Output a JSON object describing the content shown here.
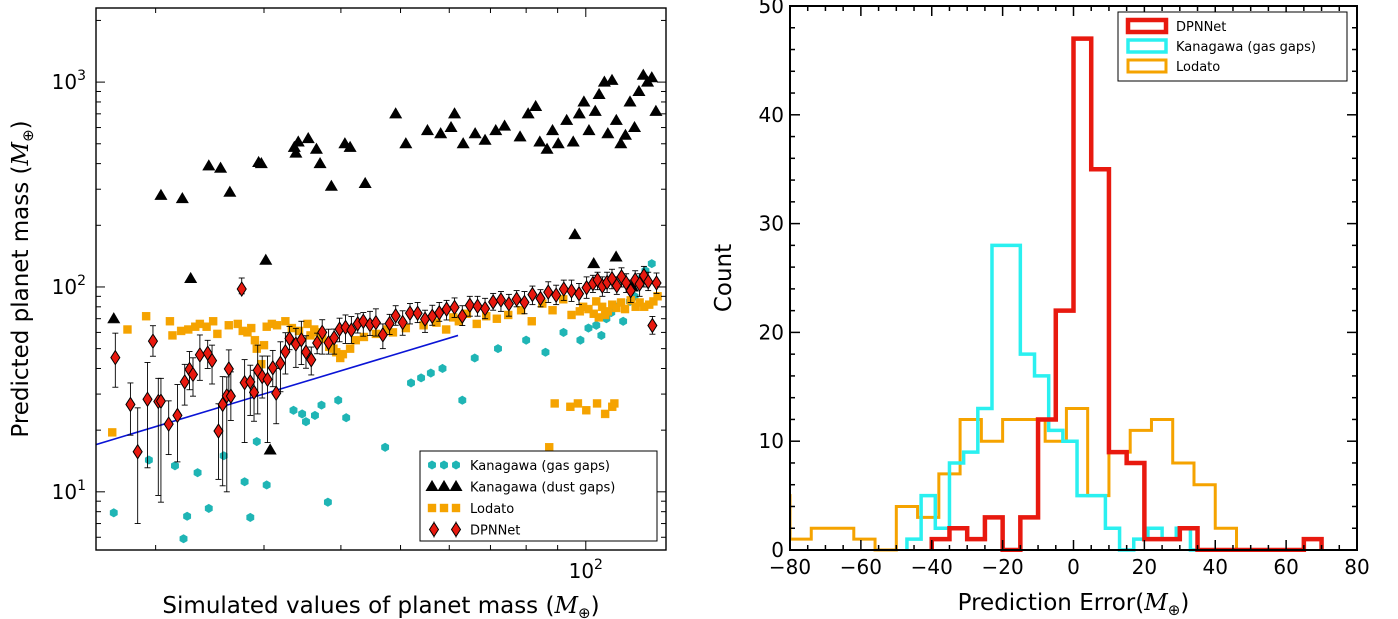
{
  "chart_data": [
    {
      "type": "scatter",
      "xlabel": "Simulated values of planet mass (M⊕)",
      "ylabel": "Predicted planet mass (M⊕)",
      "xscale": "log",
      "yscale": "log",
      "xlim": [
        16,
        135
      ],
      "ylim": [
        5.2,
        2300
      ],
      "x_tick_labels": [
        {
          "value": 100,
          "label": "10²"
        }
      ],
      "y_tick_labels": [
        {
          "value": 10,
          "label": "10¹"
        },
        {
          "value": 100,
          "label": "10²"
        },
        {
          "value": 1000,
          "label": "10³"
        }
      ],
      "legend_position": "bottom-right",
      "colors": {
        "kanagawa_gas": "#1fb5b5",
        "kanagawa_dust": "#000000",
        "lodato": "#f5a300",
        "dpnnet": "#e8190f",
        "fit_line": "#0a14d6"
      },
      "fit_line": {
        "name": "",
        "x": [
          16,
          62
        ],
        "y": [
          17,
          58
        ]
      },
      "series": [
        {
          "name": "Kanagawa (gas gaps)",
          "marker": "hexagon",
          "x": [
            17.1,
            19.5,
            21.5,
            22.2,
            22.5,
            23.4,
            24.4,
            25.8,
            27.9,
            28.5,
            29.2,
            30.3,
            33.5,
            34.6,
            35.1,
            36.3,
            37.2,
            38.1,
            39.6,
            40.8,
            47.2,
            52,
            54,
            56,
            58.5,
            63,
            66,
            72,
            80,
            86,
            92,
            98,
            101,
            104,
            106,
            108,
            110,
            112,
            115,
            118,
            120,
            123,
            125,
            128
          ],
          "y": [
            7.9,
            14.3,
            13.4,
            5.9,
            7.6,
            12.4,
            8.3,
            15,
            11.2,
            7.5,
            17.6,
            10.8,
            25,
            24,
            22,
            23.6,
            26.5,
            8.9,
            28,
            23,
            16.5,
            34,
            36,
            38,
            40,
            28,
            45,
            50,
            55,
            48,
            60,
            55,
            63,
            65,
            58,
            70,
            75,
            80,
            68,
            85,
            90,
            110,
            120,
            130
          ]
        },
        {
          "name": "Kanagawa (dust gaps)",
          "marker": "triangle",
          "x": [
            17.1,
            20.4,
            22.1,
            22.8,
            24.4,
            25.5,
            26.4,
            29.4,
            29.7,
            30.2,
            30.7,
            33.6,
            33.8,
            34.1,
            35.4,
            36.5,
            37,
            38.6,
            40.6,
            41.4,
            43.8,
            49.1,
            51,
            55.3,
            58.1,
            60.4,
            61.2,
            63.2,
            66.1,
            68.6,
            71.4,
            73.8,
            78.2,
            80.6,
            82.9,
            84.2,
            86.5,
            88.3,
            90.2,
            93.1,
            95.4,
            97.6,
            99.3,
            101.2,
            103.6,
            105.1,
            107.2,
            108.6,
            110.3,
            112.1,
            114,
            116,
            118,
            120,
            122,
            124,
            126,
            128,
            130,
            96,
            103,
            112,
            119
          ],
          "y": [
            70,
            280,
            270,
            110,
            390,
            380,
            290,
            405,
            400,
            135,
            16,
            480,
            450,
            510,
            530,
            470,
            400,
            310,
            500,
            480,
            320,
            700,
            500,
            580,
            560,
            600,
            700,
            500,
            560,
            520,
            580,
            610,
            540,
            700,
            760,
            510,
            470,
            580,
            500,
            650,
            510,
            700,
            800,
            580,
            720,
            870,
            1000,
            560,
            1020,
            650,
            500,
            550,
            800,
            600,
            900,
            1080,
            1000,
            1050,
            720,
            180,
            130,
            140,
            100
          ],
          "open_marker_at": {
            "x": 30.2,
            "y": 16
          }
        },
        {
          "name": "Lodato",
          "marker": "square",
          "x": [
            17,
            18,
            19.3,
            21.1,
            21.3,
            22,
            22.6,
            23.2,
            23.6,
            24.2,
            24.8,
            25.2,
            26.3,
            27.2,
            27.7,
            28.2,
            28.6,
            29,
            29.2,
            29.7,
            30,
            30.3,
            30.9,
            31.5,
            32.5,
            33.3,
            34.2,
            35.3,
            35.7,
            36.2,
            36.8,
            37.3,
            38.3,
            38.9,
            39.3,
            39.9,
            40.3,
            41.4,
            42.3,
            43.6,
            45.6,
            47.6,
            48.6,
            51,
            54.5,
            57.2,
            59.3,
            60.9,
            62.2,
            64.1,
            66.5,
            68.9,
            71.7,
            74.8,
            78.5,
            81.7,
            85,
            88.3,
            91.9,
            94.8,
            97.8,
            99,
            101,
            103,
            104,
            105,
            106.3,
            107.5,
            108.6,
            110.4,
            112.1,
            114.1,
            115.8,
            118.3,
            120.5,
            122.3,
            124.4,
            126.8,
            128.8,
            130.8,
            87.2,
            89,
            94.4,
            97.1,
            100.2,
            104.3,
            107.5,
            110.4,
            111.3
          ],
          "y": [
            19.5,
            62,
            72,
            68,
            58,
            61,
            62,
            64,
            66,
            64,
            68,
            59,
            65,
            66,
            61,
            60,
            63,
            55,
            50,
            42,
            52,
            64,
            66,
            65,
            68,
            63,
            61,
            66,
            58,
            62,
            60,
            56,
            51,
            50,
            48,
            45,
            47,
            50,
            55,
            57,
            59,
            62,
            60,
            63,
            65,
            67,
            62,
            71,
            68,
            74,
            66,
            72,
            70,
            73,
            77,
            68,
            83,
            77,
            87,
            73,
            76,
            80,
            78,
            74,
            85,
            71,
            80,
            73,
            76,
            82,
            79,
            84,
            78,
            86,
            80,
            84,
            80,
            82,
            85,
            90,
            16.5,
            27,
            26,
            27,
            25,
            27,
            24,
            26,
            27
          ]
        },
        {
          "name": "DPNNet",
          "marker": "diamond",
          "x": [
            17.2,
            18.2,
            18.7,
            19.4,
            19.8,
            20.2,
            20.4,
            21,
            21.7,
            22.3,
            22.7,
            23,
            23.6,
            24.3,
            24.7,
            25.3,
            25.7,
            26.1,
            26.3,
            26.5,
            27.6,
            27.9,
            28.5,
            28.9,
            29.3,
            29.8,
            30.4,
            31,
            31.4,
            31.9,
            32.5,
            33,
            33.8,
            34.5,
            35.1,
            35.8,
            36.6,
            37.3,
            38.2,
            39,
            39.8,
            40.7,
            41.6,
            42.6,
            43.5,
            44.6,
            45.6,
            46.8,
            48,
            49.1,
            50.4,
            51.8,
            53.3,
            54.8,
            56.3,
            57.8,
            59.4,
            61.2,
            63,
            64.8,
            66.7,
            68.6,
            70.7,
            72.8,
            75,
            77.2,
            79.5,
            81.9,
            84.4,
            86.9,
            89.5,
            92.1,
            94.8,
            97.5,
            100.3,
            102.7,
            104.5,
            106.4,
            108.3,
            110.3,
            112.3,
            114.3,
            116.3,
            118.3,
            120.3,
            122.3,
            124.3,
            126.3,
            128.3,
            130.3
          ],
          "y": [
            45.2,
            26.7,
            15.7,
            28.3,
            54.4,
            27.6,
            27.7,
            21.4,
            23.6,
            34.4,
            39.6,
            37.4,
            46.6,
            47.5,
            43.7,
            19.8,
            26.7,
            29.4,
            39.8,
            29.3,
            97.7,
            34.1,
            34.4,
            30.6,
            39.2,
            36.5,
            35.4,
            40.3,
            30.3,
            42.4,
            48.3,
            56,
            52.6,
            55.2,
            48.1,
            44.1,
            53.3,
            60,
            53.4,
            56.4,
            62.2,
            63.5,
            61.6,
            66.1,
            68,
            65.5,
            67,
            58.4,
            66.3,
            72.3,
            67.1,
            74.5,
            74.4,
            69.6,
            71.9,
            74.8,
            77.9,
            79.5,
            72,
            81.4,
            80.5,
            78.4,
            84.5,
            86.4,
            82.7,
            87.1,
            84.1,
            91.8,
            87.9,
            94.4,
            91.2,
            97.6,
            95.6,
            92.6,
            99.2,
            103.8,
            108.3,
            100.9,
            105.2,
            109.6,
            101.4,
            112.1,
            104.7,
            95.9,
            108.2,
            103.4,
            113.5,
            106.1,
            64.8,
            104.6
          ],
          "error_low": [
            32.4,
            18.9,
            7,
            13.1,
            45.9,
            9.6,
            8.9,
            15.2,
            14,
            26.5,
            31.5,
            29.3,
            35,
            40,
            33.6,
            11.5,
            10.7,
            10,
            30.7,
            22.3,
            92.6,
            17.4,
            23.6,
            22.1,
            24,
            28.7,
            17.4,
            32.6,
            21.5,
            30.8,
            37.6,
            49.4,
            40.5,
            41.8,
            40.1,
            37.2,
            47.2,
            47,
            47,
            47,
            54,
            53,
            53,
            59.6,
            57.5,
            58,
            57.6,
            50,
            58.6,
            65,
            58.1,
            66,
            67,
            60,
            65,
            68,
            69,
            71,
            64.8,
            72,
            72,
            70,
            77,
            76,
            72,
            80,
            74,
            82,
            80,
            84,
            82,
            86,
            85,
            82,
            88,
            94,
            97,
            90,
            94,
            98,
            92,
            100,
            94,
            84,
            96,
            90,
            100,
            96,
            58.8,
            93
          ],
          "error_high": [
            59.5,
            34,
            25.7,
            42.8,
            64.7,
            35.8,
            35.8,
            27.8,
            33.4,
            41.9,
            48.4,
            45.1,
            58.3,
            54.9,
            52,
            26.9,
            36.5,
            36.4,
            49.3,
            38.5,
            110.6,
            44.2,
            41.5,
            39.2,
            52,
            46,
            46,
            49,
            40,
            54,
            59.8,
            64.2,
            62.8,
            68,
            57.8,
            50.9,
            59.5,
            69.2,
            62.2,
            62.3,
            70.4,
            73,
            71.7,
            74,
            75,
            76,
            78.2,
            66,
            73.5,
            81,
            76.5,
            83,
            84,
            77,
            81.4,
            84,
            86,
            88.4,
            81,
            90,
            90,
            88,
            93,
            95,
            92,
            96,
            95,
            101,
            97,
            106,
            102,
            108,
            108,
            104,
            112,
            114,
            118,
            112,
            118,
            122,
            112,
            124,
            116,
            108,
            120,
            116,
            126,
            118,
            71.8,
            117
          ]
        }
      ]
    },
    {
      "type": "histogram",
      "xlabel": "Prediction Error(M⊕)",
      "ylabel": "Count",
      "xlim": [
        -80,
        80
      ],
      "ylim": [
        0,
        50
      ],
      "x_ticks": [
        -80,
        -60,
        -40,
        -20,
        0,
        20,
        40,
        60,
        80
      ],
      "y_ticks": [
        0,
        10,
        20,
        30,
        40,
        50
      ],
      "legend_position": "top-right",
      "series": [
        {
          "name": "DPNNet",
          "color": "#e8190f",
          "bin_edges": [
            -40,
            -35,
            -30,
            -25,
            -20,
            -15,
            -10,
            -5,
            0,
            5,
            10,
            15,
            20,
            25,
            30,
            35,
            40,
            45,
            50,
            55,
            60,
            65,
            70
          ],
          "counts": [
            1,
            2,
            1,
            3,
            0,
            3,
            12,
            22,
            47,
            35,
            9,
            8,
            1,
            1,
            2,
            0,
            0,
            0,
            0,
            0,
            0,
            1
          ]
        },
        {
          "name": "Kanagawa (gas gaps)",
          "color": "#2af0f0",
          "bin_edges": [
            -47,
            -43,
            -39,
            -35,
            -31,
            -27,
            -23,
            -19,
            -15,
            -11,
            -7,
            -3,
            1,
            5,
            9,
            13,
            17,
            21,
            25,
            29,
            33,
            37
          ],
          "counts": [
            1,
            5,
            2,
            8,
            9,
            13,
            28,
            28,
            18,
            16,
            11,
            10,
            5,
            5,
            2,
            0,
            1,
            2,
            1,
            2,
            0
          ]
        },
        {
          "name": "Lodato",
          "color": "#f5a300",
          "bin_edges": [
            -86,
            -80,
            -74,
            -68,
            -62,
            -56,
            -50,
            -44,
            -38,
            -32,
            -26,
            -20,
            -14,
            -8,
            -2,
            4,
            10,
            16,
            22,
            28,
            34,
            40,
            46,
            52
          ],
          "counts": [
            5,
            1,
            2,
            2,
            1,
            0,
            4,
            3,
            7,
            12,
            10,
            12,
            12,
            10,
            13,
            5,
            9,
            11,
            12,
            8,
            6,
            2,
            0
          ]
        }
      ]
    }
  ]
}
